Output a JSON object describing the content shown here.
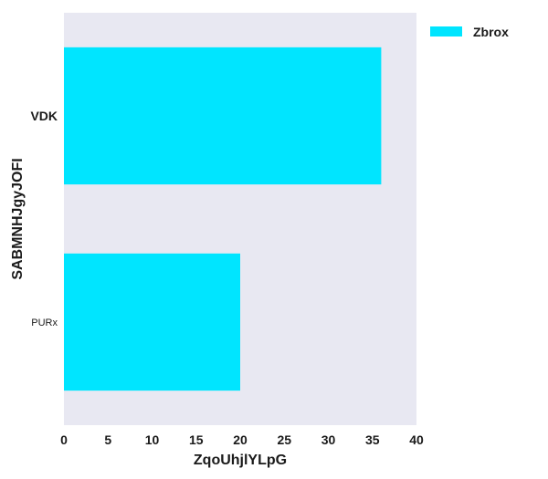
{
  "chart_data": {
    "type": "bar",
    "orientation": "horizontal",
    "categories": [
      "VDK",
      "PURx"
    ],
    "series": [
      {
        "name": "Zbrox",
        "values": [
          36,
          20
        ]
      }
    ],
    "xlabel": "ZqoUhjlYLpG",
    "ylabel": "SABMNHJgyJOFI",
    "xlim": [
      0,
      40
    ],
    "xticks": [
      "0",
      "5",
      "10",
      "15",
      "20",
      "25",
      "30",
      "35",
      "40"
    ],
    "grid": false,
    "legend_position": "top-right outside",
    "colors": {
      "bar": "#00e5ff",
      "plot_background": "#e8e8f2"
    }
  }
}
